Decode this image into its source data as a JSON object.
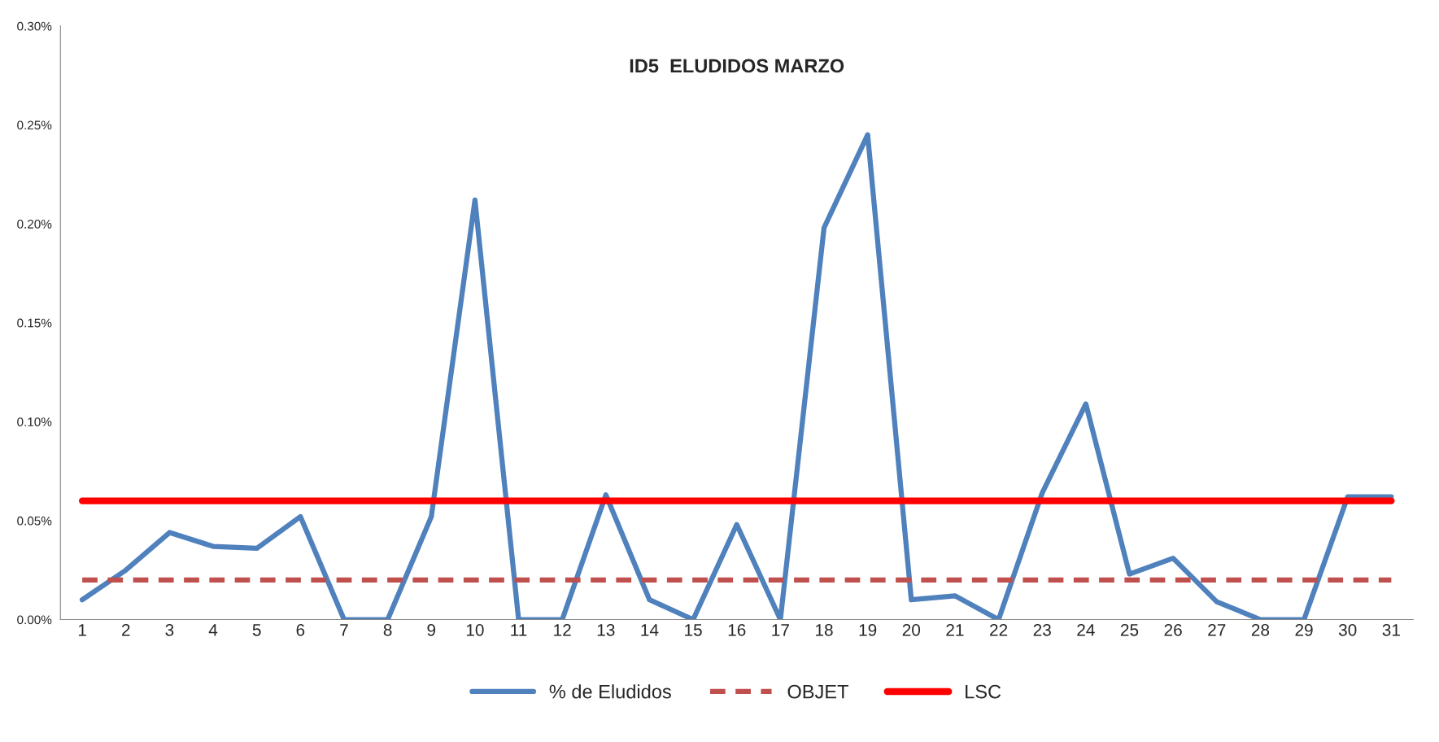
{
  "chart_data": {
    "type": "line",
    "title": "ID5  ELUDIDOS MARZO",
    "categories": [
      "1",
      "2",
      "3",
      "4",
      "5",
      "6",
      "7",
      "8",
      "9",
      "10",
      "11",
      "12",
      "13",
      "14",
      "15",
      "16",
      "17",
      "18",
      "19",
      "20",
      "21",
      "22",
      "23",
      "24",
      "25",
      "26",
      "27",
      "28",
      "29",
      "30",
      "31"
    ],
    "series": [
      {
        "name": "% de Eludidos",
        "color": "#4f81bd",
        "line_style": "solid",
        "values": [
          0.01,
          0.025,
          0.044,
          0.037,
          0.036,
          0.052,
          0,
          0,
          0.052,
          0.212,
          0,
          0,
          0.063,
          0.01,
          0,
          0.048,
          0,
          0.198,
          0.245,
          0.01,
          0.012,
          0,
          0.064,
          0.109,
          0.023,
          0.031,
          0.009,
          0,
          0,
          0.062,
          0.062
        ]
      },
      {
        "name": "OBJET",
        "color": "#c0504d",
        "line_style": "dashed",
        "values": [
          0.02,
          0.02,
          0.02,
          0.02,
          0.02,
          0.02,
          0.02,
          0.02,
          0.02,
          0.02,
          0.02,
          0.02,
          0.02,
          0.02,
          0.02,
          0.02,
          0.02,
          0.02,
          0.02,
          0.02,
          0.02,
          0.02,
          0.02,
          0.02,
          0.02,
          0.02,
          0.02,
          0.02,
          0.02,
          0.02,
          0.02
        ]
      },
      {
        "name": "LSC",
        "color": "#ff0000",
        "line_style": "solid",
        "values": [
          0.06,
          0.06,
          0.06,
          0.06,
          0.06,
          0.06,
          0.06,
          0.06,
          0.06,
          0.06,
          0.06,
          0.06,
          0.06,
          0.06,
          0.06,
          0.06,
          0.06,
          0.06,
          0.06,
          0.06,
          0.06,
          0.06,
          0.06,
          0.06,
          0.06,
          0.06,
          0.06,
          0.06,
          0.06,
          0.06,
          0.06
        ]
      }
    ],
    "ylim": [
      0,
      0.3
    ],
    "yticks": [
      {
        "value": 0,
        "label": "0.00%"
      },
      {
        "value": 0.05,
        "label": "0.05%"
      },
      {
        "value": 0.1,
        "label": "0.10%"
      },
      {
        "value": 0.15,
        "label": "0.15%"
      },
      {
        "value": 0.2,
        "label": "0.20%"
      },
      {
        "value": 0.25,
        "label": "0.25%"
      },
      {
        "value": 0.3,
        "label": "0.30%"
      }
    ],
    "grid": false,
    "legend": "bottom",
    "marker": "none"
  }
}
